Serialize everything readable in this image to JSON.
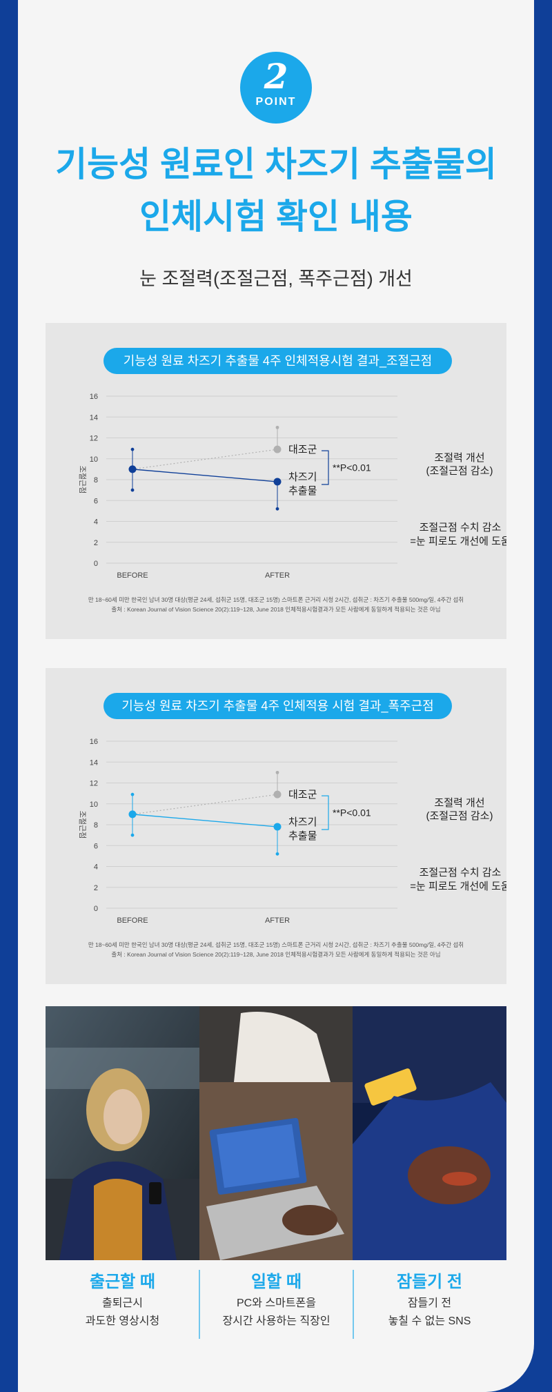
{
  "badge": {
    "number": "2",
    "label": "POINT"
  },
  "title": {
    "line1": "기능성 원료인 차즈기 추출물의",
    "line2": "인체시험 확인 내용"
  },
  "subtitle": "눈 조절력(조절근점, 폭주근점) 개선",
  "colors": {
    "brand_blue": "#0f3f98",
    "accent": "#1ba8ea",
    "grey": "#b0b0b0",
    "panel_bg": "#e6e6e6"
  },
  "charts": [
    {
      "title": "기능성 원료 차즈기 추출물 4주 인체적용시험 결과_조절근점",
      "series_color": "#0f3f98",
      "note_line1": "만 18~60세 미만 한국인 남녀 30명 대상(평균 24세, 섭취군 15명, 대조군 15명) 스마트폰 근거리 시청 2시간, 섭취군 : 차즈기 추출물 500mg/일, 4주간 섭취",
      "note_line2": "출처 : Korean Journal of Vision Science 20(2):119~128, June 2018 인체적용시험결과가 모든 사람에게 동일하게 적용되는 것은 아님"
    },
    {
      "title": "기능성 원료 차즈기 추출물 4주 인체적용 시험 결과_폭주근점",
      "series_color": "#1ba8ea",
      "note_line1": "만 18~60세 미만 한국인 남녀 30명 대상(평균 24세, 섭취군 15명, 대조군 15명) 스마트폰 근거리 시청 2시간, 섭취군 : 차즈기 추출물 500mg/일, 4주간 섭취",
      "note_line2": "출처 : Korean Journal of Vision Science 20(2):119~128, June 2018 인체적용시험결과가 모든 사람에게 동일하게 적용되는 것은 아님"
    }
  ],
  "chart_common": {
    "ylabel": "조절근점",
    "yticks": [
      "16",
      "14",
      "12",
      "10",
      "8",
      "6",
      "4",
      "2",
      "0"
    ],
    "control_label": "대조군",
    "treatment_label_1": "차즈기",
    "treatment_label_2": "추출물",
    "significance": "**P<0.01",
    "improve_1": "조절력 개선",
    "improve_2": "(조절근점 감소)",
    "benefit_1": "조절근점 수치 감소",
    "benefit_2": "=눈 피로도 개선에 도움"
  },
  "chart_data": [
    {
      "type": "line",
      "title": "기능성 원료 차즈기 추출물 4주 인체적용시험 결과_조절근점",
      "ylabel": "조절근점",
      "ylim": [
        0,
        16
      ],
      "categories": [
        "BEFORE",
        "AFTER"
      ],
      "series": [
        {
          "name": "대조군",
          "values": [
            9.0,
            10.9
          ],
          "error_low": [
            7.0,
            8.8
          ],
          "error_high": [
            10.9,
            13.0
          ]
        },
        {
          "name": "차즈기 추출물",
          "values": [
            9.0,
            7.8
          ],
          "error_low": [
            7.0,
            5.2
          ],
          "error_high": [
            10.9,
            10.0
          ]
        }
      ],
      "annotation": "**P<0.01"
    },
    {
      "type": "line",
      "title": "기능성 원료 차즈기 추출물 4주 인체적용 시험 결과_폭주근점",
      "ylabel": "조절근점",
      "ylim": [
        0,
        16
      ],
      "categories": [
        "BEFORE",
        "AFTER"
      ],
      "series": [
        {
          "name": "대조군",
          "values": [
            9.0,
            10.9
          ],
          "error_low": [
            7.0,
            8.8
          ],
          "error_high": [
            10.9,
            13.0
          ]
        },
        {
          "name": "차즈기 추출물",
          "values": [
            9.0,
            7.8
          ],
          "error_low": [
            7.0,
            5.2
          ],
          "error_high": [
            10.9,
            10.0
          ]
        }
      ],
      "annotation": "**P<0.01"
    }
  ],
  "situations": [
    {
      "title": "출근할 때",
      "line1": "출퇴근시",
      "line2": "과도한 영상시청",
      "image": "commuter-with-phone-photo"
    },
    {
      "title": "일할 때",
      "line1": "PC와 스마트폰을",
      "line2": "장시간 사용하는 직장인",
      "image": "office-laptop-photo"
    },
    {
      "title": "잠들기 전",
      "line1": "잠들기 전",
      "line2": "놓칠 수 없는 SNS",
      "image": "phone-in-bed-photo"
    }
  ]
}
